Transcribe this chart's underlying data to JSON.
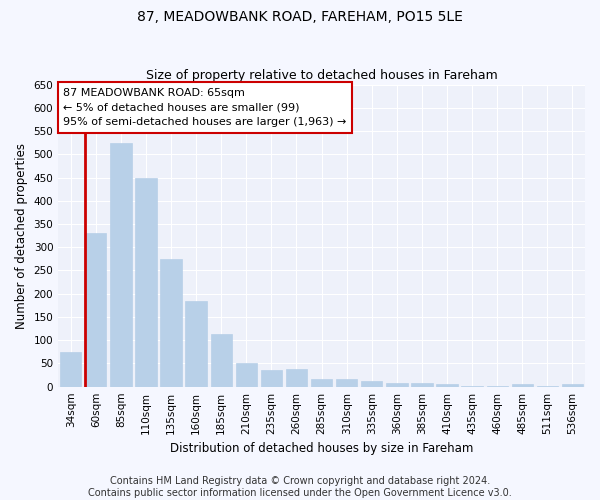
{
  "title": "87, MEADOWBANK ROAD, FAREHAM, PO15 5LE",
  "subtitle": "Size of property relative to detached houses in Fareham",
  "xlabel": "Distribution of detached houses by size in Fareham",
  "ylabel": "Number of detached properties",
  "categories": [
    "34sqm",
    "60sqm",
    "85sqm",
    "110sqm",
    "135sqm",
    "160sqm",
    "185sqm",
    "210sqm",
    "235sqm",
    "260sqm",
    "285sqm",
    "310sqm",
    "335sqm",
    "360sqm",
    "385sqm",
    "410sqm",
    "435sqm",
    "460sqm",
    "485sqm",
    "511sqm",
    "536sqm"
  ],
  "values": [
    75,
    330,
    525,
    450,
    275,
    185,
    113,
    52,
    35,
    37,
    17,
    17,
    13,
    8,
    7,
    5,
    1,
    1,
    5,
    1,
    5
  ],
  "bar_color": "#b8d0e8",
  "bar_edge_color": "#b8d0e8",
  "highlight_bar_index": 1,
  "highlight_bar_edge_color": "#cc0000",
  "annotation_box_text": "87 MEADOWBANK ROAD: 65sqm\n← 5% of detached houses are smaller (99)\n95% of semi-detached houses are larger (1,963) →",
  "annotation_box_color": "#ffffff",
  "annotation_box_edge_color": "#cc0000",
  "ylim": [
    0,
    650
  ],
  "yticks": [
    0,
    50,
    100,
    150,
    200,
    250,
    300,
    350,
    400,
    450,
    500,
    550,
    600,
    650
  ],
  "footer_line1": "Contains HM Land Registry data © Crown copyright and database right 2024.",
  "footer_line2": "Contains public sector information licensed under the Open Government Licence v3.0.",
  "bg_color": "#f5f7ff",
  "plot_bg_color": "#eef1fa",
  "grid_color": "#ffffff",
  "title_fontsize": 10,
  "subtitle_fontsize": 9,
  "axis_label_fontsize": 8.5,
  "tick_fontsize": 7.5,
  "annotation_fontsize": 8,
  "footer_fontsize": 7
}
